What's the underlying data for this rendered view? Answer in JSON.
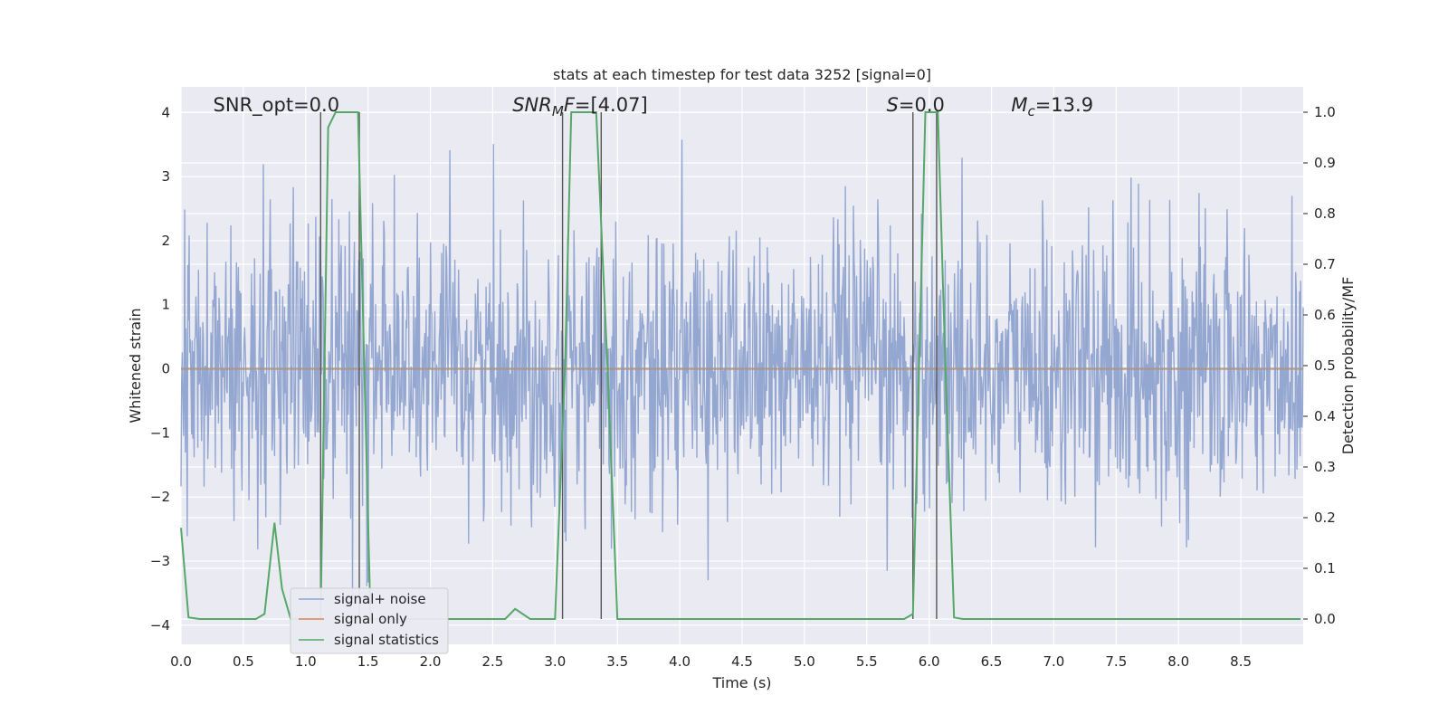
{
  "chart_data": {
    "type": "line",
    "title": "stats at each timestep for test data 3252 [signal=0]",
    "xlabel": "Time (s)",
    "ylabel": "Whitened strain",
    "y2label": "Detection probability/MF",
    "xlim": [
      0,
      9.0
    ],
    "ylim": [
      -4.3,
      4.4
    ],
    "y2lim": [
      -0.05,
      1.05
    ],
    "xticks": [
      0.0,
      0.5,
      1.0,
      1.5,
      2.0,
      2.5,
      3.0,
      3.5,
      4.0,
      4.5,
      5.0,
      5.5,
      6.0,
      6.5,
      7.0,
      7.5,
      8.0,
      8.5
    ],
    "xtick_labels": [
      "0.0",
      "0.5",
      "1.0",
      "1.5",
      "2.0",
      "2.5",
      "3.0",
      "3.5",
      "4.0",
      "4.5",
      "5.0",
      "5.5",
      "6.0",
      "6.5",
      "7.0",
      "7.5",
      "8.0",
      "8.5"
    ],
    "yticks": [
      4,
      3,
      2,
      1,
      0,
      -1,
      -2,
      -3,
      -4
    ],
    "ytick_labels": [
      "4",
      "3",
      "2",
      "1",
      "0",
      "−1",
      "−2",
      "−3",
      "−4"
    ],
    "y2ticks": [
      1.0,
      0.9,
      0.8,
      0.7,
      0.6,
      0.5,
      0.4,
      0.3,
      0.2,
      0.1,
      0.0
    ],
    "y2tick_labels": [
      "1.0",
      "0.9",
      "0.8",
      "0.7",
      "0.6",
      "0.5",
      "0.4",
      "0.3",
      "0.2",
      "0.1",
      "0.0"
    ],
    "grid": true,
    "legend_position": "lower-left",
    "annotations": [
      {
        "text": "SNR_opt=0.0",
        "x": 0.2
      },
      {
        "text": "SNR_MF=[4.07]",
        "x": 2.6
      },
      {
        "text": "S=0.0",
        "x": 5.6
      },
      {
        "text": "M_c=13.9",
        "x": 6.6
      }
    ],
    "series": [
      {
        "name": "signal+ noise",
        "color": "#8fa3cf",
        "axis": "left",
        "kind": "noise",
        "amplitude_peak": 4.0,
        "amplitude_typical": 2.5
      },
      {
        "name": "signal only",
        "color": "#dd8452",
        "axis": "left",
        "kind": "constant",
        "value": 0.0
      },
      {
        "name": "signal statistics",
        "color": "#55a868",
        "axis": "right",
        "x": [
          0.0,
          0.06,
          0.15,
          0.4,
          0.6,
          0.67,
          0.75,
          0.81,
          0.88,
          1.05,
          1.12,
          1.18,
          1.24,
          1.3,
          1.42,
          1.52,
          1.6,
          1.7,
          2.5,
          2.6,
          2.68,
          2.8,
          3.0,
          3.08,
          3.13,
          3.33,
          3.42,
          3.5,
          3.55,
          5.8,
          5.87,
          5.92,
          5.97,
          6.07,
          6.13,
          6.2,
          6.27,
          8.98
        ],
        "y": [
          0.18,
          0.003,
          0.0,
          0.0,
          0.0,
          0.01,
          0.19,
          0.06,
          0.0,
          0.0,
          0.0,
          0.97,
          1.0,
          1.0,
          1.0,
          0.0,
          0.0,
          0.0,
          0.0,
          0.0,
          0.02,
          0.0,
          0.0,
          0.5,
          1.0,
          1.0,
          0.5,
          0.0,
          0.0,
          0.0,
          0.01,
          0.5,
          1.0,
          1.0,
          0.5,
          0.003,
          0.0,
          0.0
        ]
      }
    ],
    "vertical_markers": [
      1.12,
      1.43,
      3.06,
      3.37,
      5.87,
      6.06
    ]
  }
}
